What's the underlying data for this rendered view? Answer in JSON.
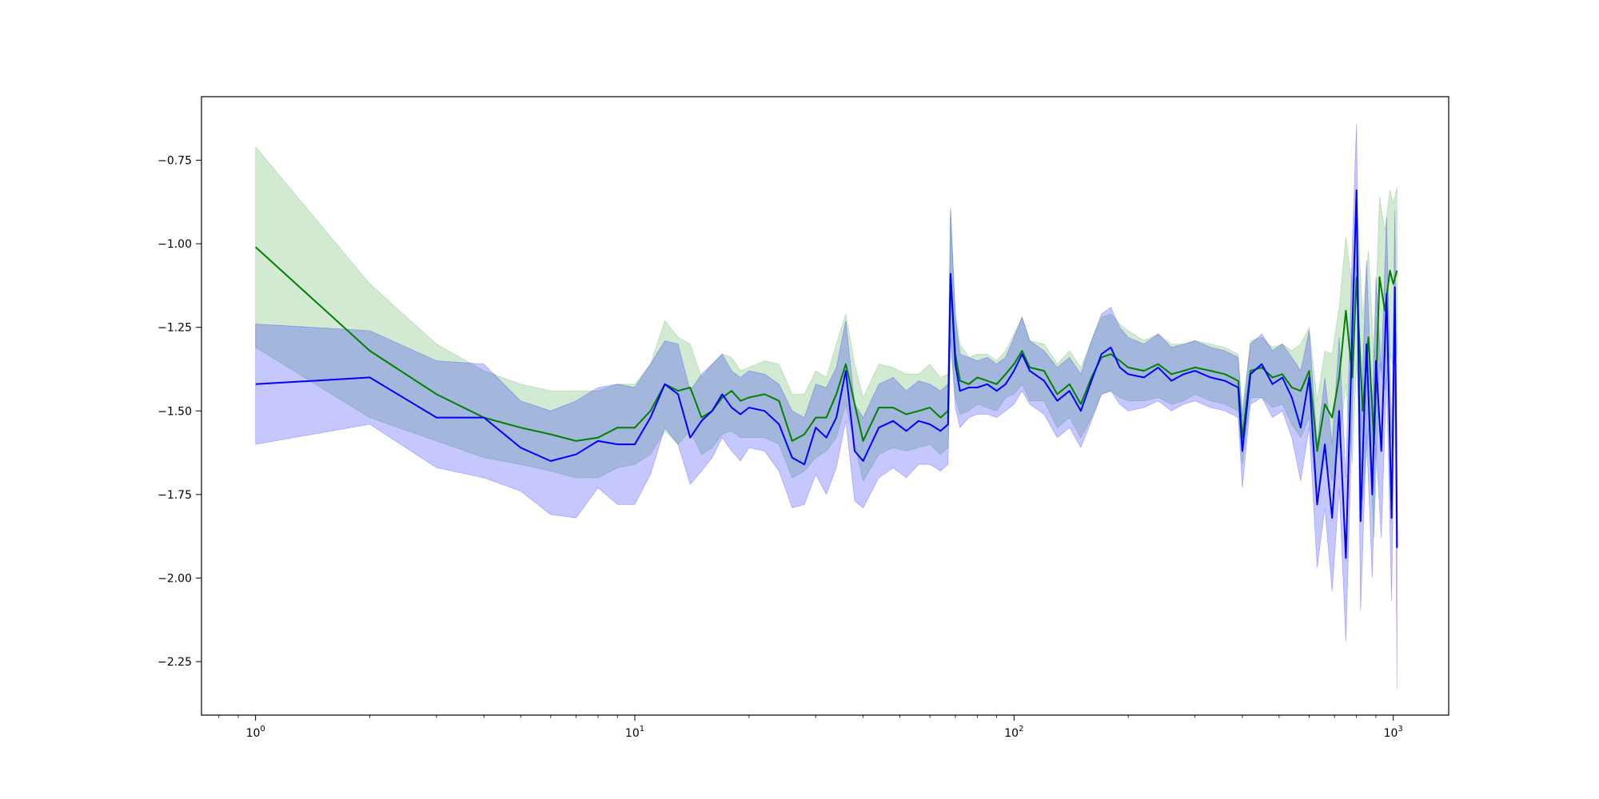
{
  "chart_data": {
    "type": "line",
    "title": "",
    "xlabel": "",
    "ylabel": "",
    "x_scale": "log",
    "xlim": [
      0.72,
      1400
    ],
    "ylim": [
      -2.41,
      -0.56
    ],
    "grid": false,
    "x_ticks": [
      {
        "value": 1,
        "base": "10",
        "exp": "0"
      },
      {
        "value": 10,
        "base": "10",
        "exp": "1"
      },
      {
        "value": 100,
        "base": "10",
        "exp": "2"
      },
      {
        "value": 1000,
        "base": "10",
        "exp": "3"
      }
    ],
    "y_ticks": [
      {
        "value": -0.75,
        "label": "−0.75"
      },
      {
        "value": -1.0,
        "label": "−1.00"
      },
      {
        "value": -1.25,
        "label": "−1.25"
      },
      {
        "value": -1.5,
        "label": "−1.50"
      },
      {
        "value": -1.75,
        "label": "−1.75"
      },
      {
        "value": -2.0,
        "label": "−2.00"
      },
      {
        "value": -2.25,
        "label": "−2.25"
      }
    ],
    "series": [
      {
        "color": "#008000",
        "band_color": "#2ca02c",
        "points": [
          [
            1,
            -1.01,
            -0.71,
            -1.31
          ],
          [
            2,
            -1.32,
            -1.12,
            -1.52
          ],
          [
            3,
            -1.45,
            -1.3,
            -1.59
          ],
          [
            4,
            -1.52,
            -1.38,
            -1.64
          ],
          [
            5,
            -1.55,
            -1.42,
            -1.66
          ],
          [
            6,
            -1.57,
            -1.44,
            -1.68
          ],
          [
            7,
            -1.59,
            -1.44,
            -1.7
          ],
          [
            8,
            -1.58,
            -1.44,
            -1.7
          ],
          [
            9,
            -1.55,
            -1.42,
            -1.67
          ],
          [
            10,
            -1.55,
            -1.42,
            -1.66
          ],
          [
            11,
            -1.5,
            -1.36,
            -1.63
          ],
          [
            12,
            -1.42,
            -1.23,
            -1.56
          ],
          [
            13,
            -1.44,
            -1.28,
            -1.6
          ],
          [
            14,
            -1.43,
            -1.3,
            -1.56
          ],
          [
            15,
            -1.52,
            -1.4,
            -1.63
          ],
          [
            16,
            -1.5,
            -1.36,
            -1.61
          ],
          [
            17,
            -1.46,
            -1.33,
            -1.57
          ],
          [
            18,
            -1.44,
            -1.34,
            -1.56
          ],
          [
            19,
            -1.47,
            -1.38,
            -1.58
          ],
          [
            20,
            -1.46,
            -1.37,
            -1.58
          ],
          [
            22,
            -1.45,
            -1.35,
            -1.58
          ],
          [
            24,
            -1.47,
            -1.36,
            -1.6
          ],
          [
            26,
            -1.59,
            -1.45,
            -1.7
          ],
          [
            28,
            -1.57,
            -1.45,
            -1.68
          ],
          [
            30,
            -1.52,
            -1.38,
            -1.64
          ],
          [
            32,
            -1.52,
            -1.4,
            -1.62
          ],
          [
            34,
            -1.45,
            -1.3,
            -1.58
          ],
          [
            36,
            -1.36,
            -1.21,
            -1.48
          ],
          [
            38,
            -1.48,
            -1.36,
            -1.6
          ],
          [
            40,
            -1.59,
            -1.46,
            -1.71
          ],
          [
            44,
            -1.49,
            -1.36,
            -1.63
          ],
          [
            48,
            -1.49,
            -1.37,
            -1.61
          ],
          [
            52,
            -1.51,
            -1.39,
            -1.62
          ],
          [
            56,
            -1.5,
            -1.39,
            -1.61
          ],
          [
            60,
            -1.49,
            -1.36,
            -1.6
          ],
          [
            64,
            -1.52,
            -1.4,
            -1.63
          ],
          [
            67,
            -1.5,
            -1.39,
            -1.61
          ],
          [
            68,
            -1.09,
            -0.9,
            -1.27
          ],
          [
            70,
            -1.33,
            -1.2,
            -1.46
          ],
          [
            72,
            -1.41,
            -1.3,
            -1.51
          ],
          [
            76,
            -1.42,
            -1.34,
            -1.5
          ],
          [
            80,
            -1.4,
            -1.33,
            -1.48
          ],
          [
            85,
            -1.41,
            -1.33,
            -1.49
          ],
          [
            90,
            -1.42,
            -1.35,
            -1.5
          ],
          [
            95,
            -1.39,
            -1.32,
            -1.46
          ],
          [
            100,
            -1.36,
            -1.27,
            -1.45
          ],
          [
            105,
            -1.32,
            -1.22,
            -1.42
          ],
          [
            110,
            -1.37,
            -1.29,
            -1.47
          ],
          [
            120,
            -1.38,
            -1.3,
            -1.47
          ],
          [
            130,
            -1.45,
            -1.36,
            -1.55
          ],
          [
            140,
            -1.42,
            -1.32,
            -1.52
          ],
          [
            150,
            -1.48,
            -1.37,
            -1.58
          ],
          [
            160,
            -1.4,
            -1.29,
            -1.52
          ],
          [
            170,
            -1.34,
            -1.22,
            -1.45
          ],
          [
            180,
            -1.33,
            -1.21,
            -1.44
          ],
          [
            190,
            -1.35,
            -1.24,
            -1.46
          ],
          [
            200,
            -1.37,
            -1.26,
            -1.47
          ],
          [
            220,
            -1.38,
            -1.29,
            -1.47
          ],
          [
            240,
            -1.36,
            -1.27,
            -1.46
          ],
          [
            260,
            -1.39,
            -1.3,
            -1.48
          ],
          [
            280,
            -1.38,
            -1.3,
            -1.47
          ],
          [
            300,
            -1.37,
            -1.29,
            -1.45
          ],
          [
            330,
            -1.38,
            -1.3,
            -1.47
          ],
          [
            360,
            -1.39,
            -1.31,
            -1.48
          ],
          [
            390,
            -1.41,
            -1.33,
            -1.5
          ],
          [
            400,
            -1.58,
            -1.5,
            -1.66
          ],
          [
            420,
            -1.38,
            -1.29,
            -1.46
          ],
          [
            450,
            -1.37,
            -1.28,
            -1.46
          ],
          [
            480,
            -1.4,
            -1.31,
            -1.49
          ],
          [
            510,
            -1.39,
            -1.3,
            -1.48
          ],
          [
            540,
            -1.43,
            -1.32,
            -1.54
          ],
          [
            570,
            -1.44,
            -1.3,
            -1.58
          ],
          [
            600,
            -1.38,
            -1.25,
            -1.52
          ],
          [
            630,
            -1.62,
            -1.47,
            -1.78
          ],
          [
            660,
            -1.48,
            -1.32,
            -1.64
          ],
          [
            690,
            -1.52,
            -1.33,
            -1.71
          ],
          [
            720,
            -1.4,
            -1.19,
            -1.6
          ],
          [
            750,
            -1.2,
            -0.98,
            -1.42
          ],
          [
            780,
            -1.4,
            -1.13,
            -1.66
          ],
          [
            800,
            -1.1,
            -0.85,
            -1.35
          ],
          [
            830,
            -1.5,
            -1.22,
            -1.77
          ],
          [
            860,
            -1.28,
            -1.02,
            -1.55
          ],
          [
            890,
            -1.6,
            -1.34,
            -1.88
          ],
          [
            920,
            -1.1,
            -0.86,
            -1.36
          ],
          [
            950,
            -1.2,
            -0.96,
            -1.44
          ],
          [
            980,
            -1.08,
            -0.84,
            -1.33
          ],
          [
            1000,
            -1.12,
            -0.88,
            -1.37
          ],
          [
            1023,
            -1.08,
            -0.83,
            -1.33
          ]
        ]
      },
      {
        "color": "#0000ff",
        "band_color": "#0000ff",
        "points": [
          [
            1,
            -1.42,
            -1.24,
            -1.6
          ],
          [
            2,
            -1.4,
            -1.26,
            -1.54
          ],
          [
            3,
            -1.52,
            -1.35,
            -1.67
          ],
          [
            4,
            -1.52,
            -1.36,
            -1.7
          ],
          [
            5,
            -1.61,
            -1.47,
            -1.74
          ],
          [
            6,
            -1.65,
            -1.5,
            -1.81
          ],
          [
            7,
            -1.63,
            -1.47,
            -1.82
          ],
          [
            8,
            -1.59,
            -1.43,
            -1.73
          ],
          [
            9,
            -1.6,
            -1.42,
            -1.78
          ],
          [
            10,
            -1.6,
            -1.43,
            -1.78
          ],
          [
            11,
            -1.52,
            -1.36,
            -1.69
          ],
          [
            12,
            -1.42,
            -1.29,
            -1.55
          ],
          [
            13,
            -1.45,
            -1.3,
            -1.6
          ],
          [
            14,
            -1.58,
            -1.44,
            -1.72
          ],
          [
            15,
            -1.53,
            -1.39,
            -1.68
          ],
          [
            16,
            -1.5,
            -1.36,
            -1.64
          ],
          [
            17,
            -1.45,
            -1.33,
            -1.58
          ],
          [
            18,
            -1.49,
            -1.38,
            -1.62
          ],
          [
            19,
            -1.51,
            -1.4,
            -1.65
          ],
          [
            20,
            -1.49,
            -1.38,
            -1.61
          ],
          [
            22,
            -1.5,
            -1.39,
            -1.62
          ],
          [
            24,
            -1.54,
            -1.42,
            -1.68
          ],
          [
            26,
            -1.64,
            -1.5,
            -1.79
          ],
          [
            28,
            -1.66,
            -1.52,
            -1.78
          ],
          [
            30,
            -1.55,
            -1.42,
            -1.69
          ],
          [
            32,
            -1.58,
            -1.43,
            -1.75
          ],
          [
            34,
            -1.52,
            -1.37,
            -1.67
          ],
          [
            36,
            -1.38,
            -1.23,
            -1.53
          ],
          [
            38,
            -1.62,
            -1.48,
            -1.77
          ],
          [
            40,
            -1.65,
            -1.52,
            -1.79
          ],
          [
            44,
            -1.55,
            -1.42,
            -1.7
          ],
          [
            48,
            -1.53,
            -1.4,
            -1.67
          ],
          [
            52,
            -1.56,
            -1.44,
            -1.7
          ],
          [
            56,
            -1.53,
            -1.41,
            -1.66
          ],
          [
            60,
            -1.54,
            -1.42,
            -1.66
          ],
          [
            64,
            -1.56,
            -1.44,
            -1.68
          ],
          [
            67,
            -1.54,
            -1.42,
            -1.66
          ],
          [
            68,
            -1.09,
            -0.89,
            -1.28
          ],
          [
            70,
            -1.36,
            -1.22,
            -1.49
          ],
          [
            72,
            -1.44,
            -1.33,
            -1.55
          ],
          [
            76,
            -1.43,
            -1.34,
            -1.52
          ],
          [
            80,
            -1.43,
            -1.35,
            -1.51
          ],
          [
            85,
            -1.42,
            -1.34,
            -1.51
          ],
          [
            90,
            -1.44,
            -1.36,
            -1.52
          ],
          [
            95,
            -1.42,
            -1.34,
            -1.5
          ],
          [
            100,
            -1.38,
            -1.28,
            -1.48
          ],
          [
            105,
            -1.33,
            -1.22,
            -1.44
          ],
          [
            110,
            -1.38,
            -1.29,
            -1.48
          ],
          [
            120,
            -1.41,
            -1.32,
            -1.51
          ],
          [
            130,
            -1.47,
            -1.37,
            -1.58
          ],
          [
            140,
            -1.44,
            -1.34,
            -1.55
          ],
          [
            150,
            -1.5,
            -1.39,
            -1.61
          ],
          [
            160,
            -1.41,
            -1.29,
            -1.53
          ],
          [
            170,
            -1.33,
            -1.21,
            -1.45
          ],
          [
            180,
            -1.31,
            -1.19,
            -1.44
          ],
          [
            190,
            -1.37,
            -1.25,
            -1.48
          ],
          [
            200,
            -1.39,
            -1.28,
            -1.5
          ],
          [
            220,
            -1.4,
            -1.3,
            -1.49
          ],
          [
            240,
            -1.37,
            -1.27,
            -1.47
          ],
          [
            260,
            -1.41,
            -1.31,
            -1.5
          ],
          [
            280,
            -1.39,
            -1.3,
            -1.48
          ],
          [
            300,
            -1.38,
            -1.29,
            -1.47
          ],
          [
            330,
            -1.4,
            -1.31,
            -1.49
          ],
          [
            360,
            -1.41,
            -1.32,
            -1.5
          ],
          [
            390,
            -1.43,
            -1.34,
            -1.52
          ],
          [
            400,
            -1.62,
            -1.52,
            -1.73
          ],
          [
            420,
            -1.39,
            -1.3,
            -1.48
          ],
          [
            450,
            -1.36,
            -1.27,
            -1.46
          ],
          [
            480,
            -1.42,
            -1.32,
            -1.52
          ],
          [
            510,
            -1.4,
            -1.3,
            -1.5
          ],
          [
            540,
            -1.46,
            -1.34,
            -1.58
          ],
          [
            570,
            -1.55,
            -1.38,
            -1.71
          ],
          [
            600,
            -1.4,
            -1.26,
            -1.55
          ],
          [
            630,
            -1.78,
            -1.6,
            -1.97
          ],
          [
            660,
            -1.6,
            -1.4,
            -1.79
          ],
          [
            690,
            -1.82,
            -1.6,
            -2.04
          ],
          [
            720,
            -1.5,
            -1.28,
            -1.73
          ],
          [
            750,
            -1.94,
            -1.7,
            -2.19
          ],
          [
            780,
            -1.25,
            -1.0,
            -1.5
          ],
          [
            800,
            -0.84,
            -0.64,
            -1.06
          ],
          [
            820,
            -1.83,
            -1.56,
            -2.1
          ],
          [
            850,
            -1.3,
            -1.05,
            -1.57
          ],
          [
            880,
            -1.75,
            -1.5,
            -2.0
          ],
          [
            900,
            -1.35,
            -1.1,
            -1.6
          ],
          [
            930,
            -1.62,
            -1.38,
            -1.88
          ],
          [
            960,
            -1.15,
            -0.92,
            -1.4
          ],
          [
            990,
            -1.82,
            -1.58,
            -2.07
          ],
          [
            1010,
            -1.13,
            -0.9,
            -1.38
          ],
          [
            1023,
            -1.91,
            -1.62,
            -2.33
          ]
        ]
      }
    ]
  }
}
